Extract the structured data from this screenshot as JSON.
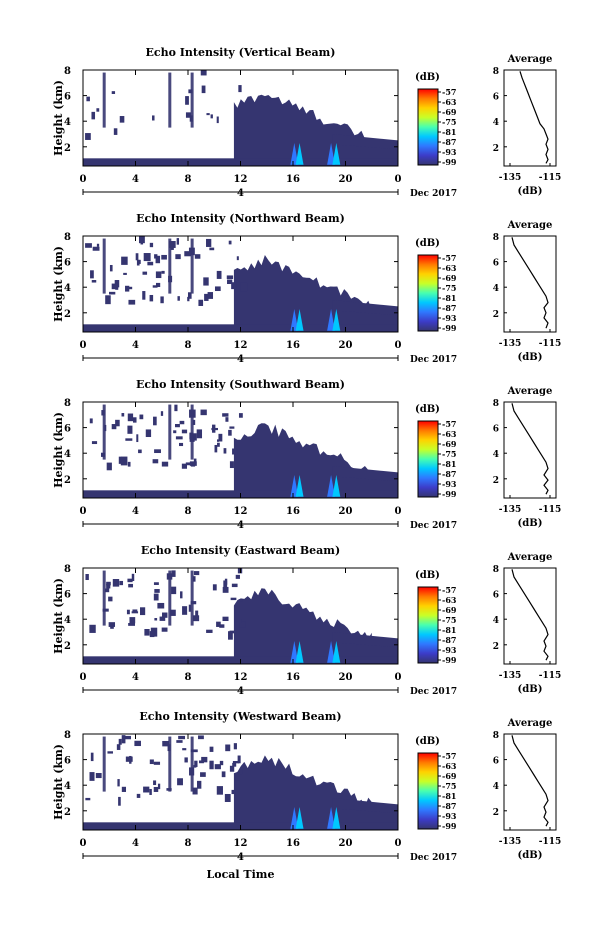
{
  "chart_data": [
    {
      "type": "heatmap",
      "title": "Echo Intensity (Vertical Beam)",
      "ylabel": "Height (km)",
      "xlabel": "",
      "x_ticks": [
        "0",
        "4",
        "8",
        "12",
        "16",
        "20",
        "0"
      ],
      "x_date_marker": "4",
      "date_label": "Dec 2017",
      "y_ticks": [
        "8",
        "6",
        "4",
        "2"
      ],
      "xlim": [
        0,
        24
      ],
      "ylim": [
        0.5,
        8
      ],
      "colorbar": {
        "unit": "(dB)",
        "labels": [
          "-57",
          "-63",
          "-69",
          "-75",
          "-81",
          "-87",
          "-93",
          "-99"
        ]
      },
      "profile": {
        "title": "Average",
        "xlabel": "(dB)",
        "x_ticks": [
          "-135",
          "-115"
        ],
        "y_ticks": [
          "8",
          "6",
          "4",
          "2"
        ],
        "points": [
          [
            -130,
            7.9
          ],
          [
            -129,
            7.4
          ],
          [
            -128,
            7.0
          ],
          [
            -127,
            6.6
          ],
          [
            -126,
            6.2
          ],
          [
            -125,
            5.8
          ],
          [
            -124,
            5.4
          ],
          [
            -123,
            5.0
          ],
          [
            -122,
            4.6
          ],
          [
            -121,
            4.2
          ],
          [
            -120,
            3.8
          ],
          [
            -118,
            3.4
          ],
          [
            -117,
            3.0
          ],
          [
            -116,
            2.6
          ],
          [
            -117,
            2.2
          ],
          [
            -116,
            1.8
          ],
          [
            -117,
            1.4
          ],
          [
            -116,
            1.0
          ],
          [
            -117,
            0.7
          ]
        ]
      }
    },
    {
      "type": "heatmap",
      "title": "Echo Intensity (Northward Beam)",
      "ylabel": "Height (km)",
      "xlabel": "",
      "x_ticks": [
        "0",
        "4",
        "8",
        "12",
        "16",
        "20",
        "0"
      ],
      "x_date_marker": "4",
      "date_label": "Dec 2017",
      "y_ticks": [
        "8",
        "6",
        "4",
        "2"
      ],
      "xlim": [
        0,
        24
      ],
      "ylim": [
        0.5,
        8
      ],
      "colorbar": {
        "unit": "(dB)",
        "labels": [
          "-57",
          "-63",
          "-69",
          "-75",
          "-81",
          "-87",
          "-93",
          "-99"
        ]
      },
      "profile": {
        "title": "Average",
        "xlabel": "(dB)",
        "x_ticks": [
          "-135",
          "-115"
        ],
        "y_ticks": [
          "8",
          "6",
          "4",
          "2"
        ],
        "points": [
          [
            -134,
            7.9
          ],
          [
            -133,
            7.3
          ],
          [
            -131,
            6.8
          ],
          [
            -129,
            6.3
          ],
          [
            -127,
            5.8
          ],
          [
            -125,
            5.3
          ],
          [
            -123,
            4.8
          ],
          [
            -121,
            4.3
          ],
          [
            -119,
            3.8
          ],
          [
            -117,
            3.3
          ],
          [
            -116,
            2.8
          ],
          [
            -118,
            2.4
          ],
          [
            -117,
            2.0
          ],
          [
            -118,
            1.6
          ],
          [
            -116,
            1.2
          ],
          [
            -117,
            0.8
          ]
        ]
      }
    },
    {
      "type": "heatmap",
      "title": "Echo Intensity (Southward Beam)",
      "ylabel": "Height (km)",
      "xlabel": "",
      "x_ticks": [
        "0",
        "4",
        "8",
        "12",
        "16",
        "20",
        "0"
      ],
      "x_date_marker": "4",
      "date_label": "Dec 2017",
      "y_ticks": [
        "8",
        "6",
        "4",
        "2"
      ],
      "xlim": [
        0,
        24
      ],
      "ylim": [
        0.5,
        8
      ],
      "colorbar": {
        "unit": "(dB)",
        "labels": [
          "-57",
          "-63",
          "-69",
          "-75",
          "-81",
          "-87",
          "-93",
          "-99"
        ]
      },
      "profile": {
        "title": "Average",
        "xlabel": "(dB)",
        "x_ticks": [
          "-135",
          "-115"
        ],
        "y_ticks": [
          "8",
          "6",
          "4",
          "2"
        ],
        "points": [
          [
            -134,
            7.9
          ],
          [
            -133,
            7.3
          ],
          [
            -131,
            6.8
          ],
          [
            -129,
            6.3
          ],
          [
            -127,
            5.8
          ],
          [
            -125,
            5.3
          ],
          [
            -123,
            4.8
          ],
          [
            -121,
            4.3
          ],
          [
            -119,
            3.8
          ],
          [
            -117,
            3.3
          ],
          [
            -116,
            2.8
          ],
          [
            -118,
            2.3
          ],
          [
            -116,
            1.9
          ],
          [
            -118,
            1.5
          ],
          [
            -116,
            1.1
          ],
          [
            -117,
            0.8
          ]
        ]
      }
    },
    {
      "type": "heatmap",
      "title": "Echo Intensity (Eastward Beam)",
      "ylabel": "Height (km)",
      "xlabel": "",
      "x_ticks": [
        "0",
        "4",
        "8",
        "12",
        "16",
        "20",
        "0"
      ],
      "x_date_marker": "4",
      "date_label": "Dec 2017",
      "y_ticks": [
        "8",
        "6",
        "4",
        "2"
      ],
      "xlim": [
        0,
        24
      ],
      "ylim": [
        0.5,
        8
      ],
      "colorbar": {
        "unit": "(dB)",
        "labels": [
          "-57",
          "-63",
          "-69",
          "-75",
          "-81",
          "-87",
          "-93",
          "-99"
        ]
      },
      "profile": {
        "title": "Average",
        "xlabel": "(dB)",
        "x_ticks": [
          "-135",
          "-115"
        ],
        "y_ticks": [
          "8",
          "6",
          "4",
          "2"
        ],
        "points": [
          [
            -134,
            7.9
          ],
          [
            -133,
            7.3
          ],
          [
            -131,
            6.8
          ],
          [
            -129,
            6.3
          ],
          [
            -127,
            5.8
          ],
          [
            -125,
            5.3
          ],
          [
            -123,
            4.8
          ],
          [
            -121,
            4.3
          ],
          [
            -119,
            3.8
          ],
          [
            -117,
            3.3
          ],
          [
            -116,
            2.8
          ],
          [
            -118,
            2.3
          ],
          [
            -117,
            1.9
          ],
          [
            -118,
            1.5
          ],
          [
            -116,
            1.1
          ],
          [
            -117,
            0.8
          ]
        ]
      }
    },
    {
      "type": "heatmap",
      "title": "Echo Intensity (Westward Beam)",
      "ylabel": "Height (km)",
      "xlabel": "Local Time",
      "x_ticks": [
        "0",
        "4",
        "8",
        "12",
        "16",
        "20",
        "0"
      ],
      "x_date_marker": "4",
      "date_label": "Dec 2017",
      "y_ticks": [
        "8",
        "6",
        "4",
        "2"
      ],
      "xlim": [
        0,
        24
      ],
      "ylim": [
        0.5,
        8
      ],
      "colorbar": {
        "unit": "(dB)",
        "labels": [
          "-57",
          "-63",
          "-69",
          "-75",
          "-81",
          "-87",
          "-93",
          "-99"
        ]
      },
      "profile": {
        "title": "Average",
        "xlabel": "(dB)",
        "x_ticks": [
          "-135",
          "-115"
        ],
        "y_ticks": [
          "8",
          "6",
          "4",
          "2"
        ],
        "points": [
          [
            -134,
            7.9
          ],
          [
            -133,
            7.3
          ],
          [
            -131,
            6.8
          ],
          [
            -129,
            6.3
          ],
          [
            -127,
            5.8
          ],
          [
            -125,
            5.3
          ],
          [
            -123,
            4.8
          ],
          [
            -121,
            4.3
          ],
          [
            -119,
            3.8
          ],
          [
            -117,
            3.3
          ],
          [
            -116,
            2.8
          ],
          [
            -118,
            2.3
          ],
          [
            -117,
            1.9
          ],
          [
            -118,
            1.5
          ],
          [
            -116,
            1.1
          ],
          [
            -117,
            0.8
          ]
        ]
      }
    }
  ],
  "colors": {
    "scale": [
      "#ff0000",
      "#ff7a00",
      "#ffd200",
      "#c8ff28",
      "#48ffb0",
      "#00c8ff",
      "#2f78ff",
      "#3c3cc8",
      "#353570"
    ],
    "echo_base": "#353570",
    "echo_low": "#2f78ff",
    "echo_mid": "#00c8ff"
  }
}
